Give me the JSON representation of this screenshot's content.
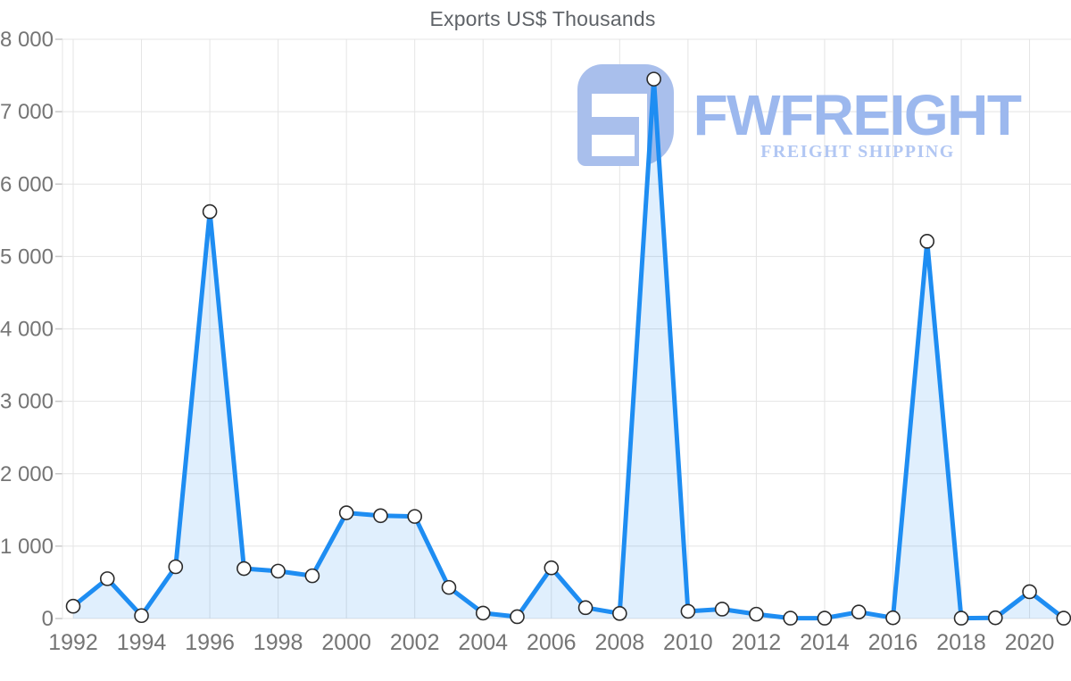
{
  "title": "Exports US$ Thousands",
  "watermark": {
    "brand": "FWFREIGHT",
    "tagline": "FREIGHT SHIPPING",
    "mark_color": "#a9bfec",
    "brand_color": "#9cb8ee",
    "tagline_color": "#b2c7f3"
  },
  "colors": {
    "line": "#1e8df2",
    "area": "rgba(33,144,240,0.14)",
    "grid": "#e4e4e4",
    "axis_border": "#d9d9d9",
    "tick_stub": "#c9c9c9",
    "tick_label": "#757575",
    "title": "#5f6368",
    "marker_fill": "#ffffff",
    "marker_stroke": "#2b2b2b"
  },
  "chart_data": {
    "type": "area",
    "title": "Exports US$ Thousands",
    "series_name": "Exports US$ Thousands",
    "x": [
      1992,
      1993,
      1994,
      1995,
      1996,
      1997,
      1998,
      1999,
      2000,
      2001,
      2002,
      2003,
      2004,
      2005,
      2006,
      2007,
      2008,
      2009,
      2010,
      2011,
      2012,
      2013,
      2014,
      2015,
      2016,
      2017,
      2018,
      2019,
      2020,
      2021
    ],
    "values": [
      170,
      550,
      40,
      715,
      5620,
      690,
      655,
      590,
      1460,
      1420,
      1410,
      430,
      75,
      25,
      700,
      150,
      70,
      7450,
      100,
      130,
      60,
      5,
      5,
      90,
      10,
      5210,
      5,
      10,
      370,
      5
    ],
    "ylim": [
      0,
      8000
    ],
    "y_ticks": [
      0,
      1000,
      2000,
      3000,
      4000,
      5000,
      6000,
      7000,
      8000
    ],
    "x_tick_labels": [
      "1992",
      "1994",
      "1996",
      "1998",
      "2000",
      "2002",
      "2004",
      "2006",
      "2008",
      "2010",
      "2012",
      "2014",
      "2016",
      "2018",
      "2020"
    ],
    "x_tick_step": 2,
    "grid": true,
    "legend": false,
    "marker": "circle-open",
    "number_format": "space-thousands"
  }
}
